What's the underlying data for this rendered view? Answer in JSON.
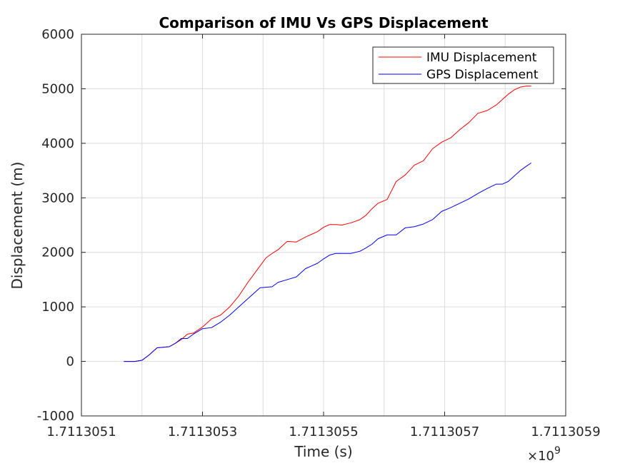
{
  "chart_data": {
    "type": "line",
    "title": "Comparison of IMU Vs GPS Displacement",
    "xlabel": "Time (s)",
    "ylabel": "Displacement (m)",
    "x_exponent_label": "×10",
    "x_exponent_power": "9",
    "xlim": [
      1.7113051,
      1.7113059
    ],
    "ylim": [
      -1000,
      6000
    ],
    "x_ticks": [
      1.7113051,
      1.7113053,
      1.7113055,
      1.7113057,
      1.7113059
    ],
    "x_tick_labels": [
      "1.7113051",
      "1.7113053",
      "1.7113055",
      "1.7113057",
      "1.7113059"
    ],
    "x_minor_gridlines": [
      1.7113052,
      1.7113054,
      1.7113056,
      1.7113058
    ],
    "y_ticks": [
      -1000,
      0,
      1000,
      2000,
      3000,
      4000,
      5000,
      6000
    ],
    "y_tick_labels": [
      "-1000",
      "0",
      "1000",
      "2000",
      "3000",
      "4000",
      "5000",
      "6000"
    ],
    "grid": true,
    "legend_position": "top-right",
    "series": [
      {
        "name": "IMU Displacement",
        "color": "#ff0000",
        "x": [
          1.71130517,
          1.711305188,
          1.7113052,
          1.711305212,
          1.711305225,
          1.711305235,
          1.711305245,
          1.711305255,
          1.711305265,
          1.711305275,
          1.711305285,
          1.7113053,
          1.711305315,
          1.71130533,
          1.711305345,
          1.71130536,
          1.711305375,
          1.711305385,
          1.711305395,
          1.711305405,
          1.711305415,
          1.711305425,
          1.71130544,
          1.711305455,
          1.71130547,
          1.71130548,
          1.71130549,
          1.7113055,
          1.71130551,
          1.71130552,
          1.71130553,
          1.711305545,
          1.71130556,
          1.71130557,
          1.71130558,
          1.71130559,
          1.711305605,
          1.71130562,
          1.711305635,
          1.71130565,
          1.711305665,
          1.71130568,
          1.711305695,
          1.71130571,
          1.711305725,
          1.71130574,
          1.711305755,
          1.71130577,
          1.711305785,
          1.711305795,
          1.711305805,
          1.711305815,
          1.711305825,
          1.711305835,
          1.711305843
        ],
        "y": [
          0,
          0,
          20,
          120,
          250,
          260,
          270,
          330,
          400,
          500,
          520,
          630,
          780,
          850,
          1000,
          1200,
          1450,
          1600,
          1750,
          1900,
          1980,
          2050,
          2200,
          2190,
          2280,
          2330,
          2380,
          2460,
          2510,
          2510,
          2500,
          2540,
          2600,
          2680,
          2800,
          2900,
          2970,
          3300,
          3420,
          3600,
          3680,
          3900,
          4020,
          4100,
          4250,
          4380,
          4550,
          4600,
          4700,
          4800,
          4900,
          4980,
          5030,
          5050,
          5050
        ]
      },
      {
        "name": "GPS Displacement",
        "color": "#0000ff",
        "x": [
          1.71130517,
          1.711305188,
          1.7113052,
          1.711305212,
          1.711305225,
          1.711305235,
          1.711305245,
          1.711305255,
          1.711305265,
          1.711305275,
          1.711305285,
          1.7113053,
          1.711305315,
          1.71130533,
          1.711305345,
          1.71130536,
          1.711305375,
          1.711305385,
          1.711305395,
          1.711305405,
          1.711305415,
          1.711305425,
          1.71130544,
          1.711305455,
          1.71130547,
          1.71130548,
          1.71130549,
          1.7113055,
          1.71130551,
          1.71130552,
          1.71130553,
          1.711305545,
          1.71130556,
          1.71130557,
          1.71130558,
          1.71130559,
          1.711305605,
          1.71130562,
          1.711305635,
          1.71130565,
          1.711305665,
          1.71130568,
          1.711305695,
          1.71130571,
          1.711305725,
          1.71130574,
          1.711305755,
          1.71130577,
          1.711305785,
          1.711305795,
          1.711305805,
          1.711305815,
          1.711305825,
          1.711305835,
          1.711305843
        ],
        "y": [
          0,
          0,
          20,
          120,
          250,
          260,
          270,
          330,
          420,
          420,
          500,
          600,
          620,
          720,
          850,
          1000,
          1150,
          1250,
          1350,
          1360,
          1370,
          1450,
          1500,
          1550,
          1700,
          1750,
          1800,
          1880,
          1950,
          1980,
          1980,
          1980,
          2020,
          2080,
          2150,
          2250,
          2320,
          2320,
          2450,
          2470,
          2520,
          2600,
          2750,
          2820,
          2900,
          2980,
          3080,
          3170,
          3250,
          3250,
          3300,
          3400,
          3500,
          3580,
          3640
        ]
      }
    ]
  }
}
